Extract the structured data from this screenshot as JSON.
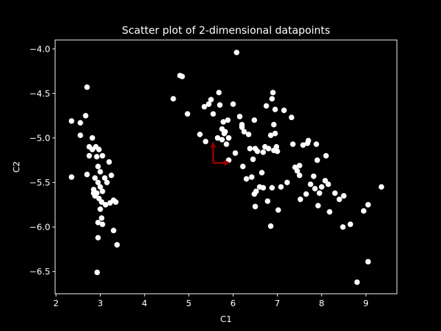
{
  "chart_data": {
    "type": "scatter",
    "title": "Scatter plot of 2-dimensional datapoints",
    "xlabel": "C1",
    "ylabel": "C2",
    "xlim": [
      1.98,
      9.7
    ],
    "ylim": [
      -6.75,
      -3.9
    ],
    "xticks": [
      2,
      3,
      4,
      5,
      6,
      7,
      8,
      9
    ],
    "yticks": [
      -4.0,
      -4.5,
      -5.0,
      -5.5,
      -6.0,
      -6.5
    ],
    "xtick_labels": [
      "2",
      "3",
      "4",
      "5",
      "6",
      "7",
      "8",
      "9"
    ],
    "ytick_labels": [
      "−4.0",
      "−4.5",
      "−5.0",
      "−5.5",
      "−6.0",
      "−6.5"
    ],
    "grid": false,
    "colors": {
      "background": "#000000",
      "points": "#ffffff",
      "arrows": "#8b0000",
      "axes": "#ffffff"
    },
    "series": [
      {
        "points": [
          [
            2.35,
            -4.81
          ],
          [
            2.35,
            -5.44
          ],
          [
            2.55,
            -4.83
          ],
          [
            2.55,
            -4.97
          ],
          [
            2.67,
            -4.75
          ],
          [
            2.7,
            -4.43
          ],
          [
            2.7,
            -5.41
          ],
          [
            2.75,
            -5.1
          ],
          [
            2.75,
            -5.2
          ],
          [
            2.82,
            -5.0
          ],
          [
            2.82,
            -5.13
          ],
          [
            2.85,
            -5.58
          ],
          [
            2.85,
            -5.62
          ],
          [
            2.88,
            -5.45
          ],
          [
            2.88,
            -5.65
          ],
          [
            2.9,
            -5.1
          ],
          [
            2.92,
            -5.21
          ],
          [
            2.92,
            -5.62
          ],
          [
            2.95,
            -5.32
          ],
          [
            2.95,
            -5.5
          ],
          [
            2.95,
            -5.95
          ],
          [
            2.95,
            -6.12
          ],
          [
            2.97,
            -5.13
          ],
          [
            2.97,
            -5.68
          ],
          [
            3.0,
            -5.38
          ],
          [
            3.0,
            -5.55
          ],
          [
            3.0,
            -5.8
          ],
          [
            3.03,
            -5.72
          ],
          [
            3.03,
            -5.9
          ],
          [
            3.05,
            -5.2
          ],
          [
            3.05,
            -5.6
          ],
          [
            3.05,
            -5.97
          ],
          [
            3.1,
            -5.45
          ],
          [
            3.12,
            -5.75
          ],
          [
            3.15,
            -5.5
          ],
          [
            3.2,
            -5.27
          ],
          [
            3.22,
            -5.73
          ],
          [
            3.25,
            -5.42
          ],
          [
            3.3,
            -5.7
          ],
          [
            3.3,
            -6.04
          ],
          [
            3.35,
            -5.72
          ],
          [
            3.38,
            -6.2
          ],
          [
            2.93,
            -6.51
          ],
          [
            4.65,
            -4.56
          ],
          [
            4.8,
            -4.3
          ],
          [
            4.85,
            -4.31
          ],
          [
            4.97,
            -4.73
          ],
          [
            5.25,
            -4.96
          ],
          [
            5.35,
            -4.65
          ],
          [
            5.38,
            -5.04
          ],
          [
            5.45,
            -4.62
          ],
          [
            5.5,
            -4.57
          ],
          [
            5.55,
            -4.73
          ],
          [
            5.65,
            -5.0
          ],
          [
            5.68,
            -4.49
          ],
          [
            5.7,
            -4.63
          ],
          [
            5.75,
            -4.9
          ],
          [
            5.75,
            -5.02
          ],
          [
            5.78,
            -4.82
          ],
          [
            5.8,
            -4.95
          ],
          [
            5.82,
            -4.93
          ],
          [
            5.85,
            -5.07
          ],
          [
            5.88,
            -4.8
          ],
          [
            5.9,
            -5.0
          ],
          [
            5.9,
            -5.25
          ],
          [
            6.0,
            -4.62
          ],
          [
            6.05,
            -5.17
          ],
          [
            6.08,
            -4.04
          ],
          [
            6.15,
            -4.76
          ],
          [
            6.2,
            -4.85
          ],
          [
            6.2,
            -4.88
          ],
          [
            6.22,
            -5.32
          ],
          [
            6.25,
            -4.93
          ],
          [
            6.3,
            -5.46
          ],
          [
            6.35,
            -4.96
          ],
          [
            6.38,
            -5.12
          ],
          [
            6.42,
            -5.44
          ],
          [
            6.45,
            -5.24
          ],
          [
            6.48,
            -4.8
          ],
          [
            6.48,
            -5.63
          ],
          [
            6.5,
            -5.12
          ],
          [
            6.5,
            -5.77
          ],
          [
            6.52,
            -5.6
          ],
          [
            6.55,
            -5.15
          ],
          [
            6.6,
            -5.55
          ],
          [
            6.65,
            -5.39
          ],
          [
            6.68,
            -5.56
          ],
          [
            6.68,
            -5.16
          ],
          [
            6.72,
            -5.1
          ],
          [
            6.75,
            -4.64
          ],
          [
            6.78,
            -5.71
          ],
          [
            6.8,
            -5.12
          ],
          [
            6.85,
            -4.97
          ],
          [
            6.85,
            -5.99
          ],
          [
            6.88,
            -4.56
          ],
          [
            6.88,
            -5.56
          ],
          [
            6.9,
            -4.49
          ],
          [
            6.92,
            -5.14
          ],
          [
            6.92,
            -4.85
          ],
          [
            6.95,
            -4.95
          ],
          [
            6.95,
            -4.68
          ],
          [
            6.98,
            -5.1
          ],
          [
            7.0,
            -5.15
          ],
          [
            7.02,
            -5.81
          ],
          [
            7.08,
            -5.55
          ],
          [
            7.15,
            -4.69
          ],
          [
            7.22,
            -5.5
          ],
          [
            7.32,
            -4.77
          ],
          [
            7.35,
            -5.07
          ],
          [
            7.4,
            -5.33
          ],
          [
            7.45,
            -5.37
          ],
          [
            7.5,
            -5.31
          ],
          [
            7.5,
            -5.42
          ],
          [
            7.52,
            -5.69
          ],
          [
            7.58,
            -5.08
          ],
          [
            7.65,
            -5.63
          ],
          [
            7.68,
            -5.06
          ],
          [
            7.7,
            -5.03
          ],
          [
            7.75,
            -5.52
          ],
          [
            7.82,
            -5.43
          ],
          [
            7.85,
            -5.57
          ],
          [
            7.88,
            -5.07
          ],
          [
            7.9,
            -5.25
          ],
          [
            7.92,
            -5.76
          ],
          [
            7.95,
            -5.62
          ],
          [
            8.0,
            -5.55
          ],
          [
            8.08,
            -5.48
          ],
          [
            8.1,
            -5.2
          ],
          [
            8.15,
            -5.52
          ],
          [
            8.18,
            -5.83
          ],
          [
            8.3,
            -5.62
          ],
          [
            8.4,
            -5.69
          ],
          [
            8.48,
            -6.0
          ],
          [
            8.5,
            -5.65
          ],
          [
            8.65,
            -5.97
          ],
          [
            8.8,
            -6.62
          ],
          [
            8.95,
            -5.82
          ],
          [
            9.05,
            -6.39
          ],
          [
            9.05,
            -5.75
          ],
          [
            9.35,
            -5.55
          ]
        ]
      }
    ],
    "arrows": [
      {
        "from": [
          5.55,
          -5.28
        ],
        "to": [
          5.55,
          -5.04
        ]
      },
      {
        "from": [
          5.55,
          -5.28
        ],
        "to": [
          5.94,
          -5.28
        ]
      }
    ]
  }
}
